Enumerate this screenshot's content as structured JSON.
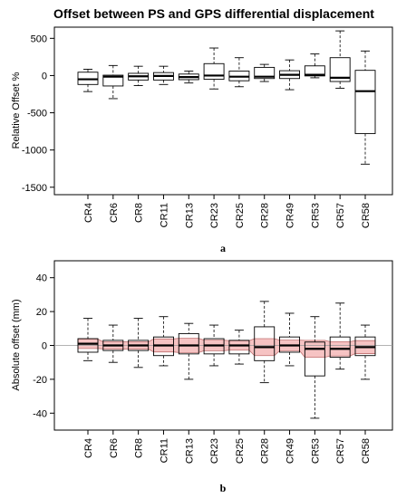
{
  "chart_data": [
    {
      "type": "box",
      "title": "Offset between PS and GPS differential displacement",
      "ylabel": "Relative Offset %",
      "panel_label": "a",
      "ylim": [
        -1600,
        650
      ],
      "yticks": [
        500,
        0,
        -500,
        -1000,
        -1500
      ],
      "ytick_labels": [
        "500",
        "0",
        "-500",
        "-1000",
        "-1500"
      ],
      "categories": [
        "CR4",
        "CR6",
        "CR8",
        "CR11",
        "CR13",
        "CR23",
        "CR25",
        "CR28",
        "CR49",
        "CR53",
        "CR57",
        "CR58"
      ],
      "boxes": [
        {
          "whisker_low": -215,
          "q1": -120,
          "median": -50,
          "q3": 45,
          "whisker_high": 85
        },
        {
          "whisker_low": -310,
          "q1": -140,
          "median": -15,
          "q3": 5,
          "whisker_high": 135
        },
        {
          "whisker_low": -135,
          "q1": -60,
          "median": -10,
          "q3": 30,
          "whisker_high": 125
        },
        {
          "whisker_low": -120,
          "q1": -60,
          "median": -5,
          "q3": 40,
          "whisker_high": 125
        },
        {
          "whisker_low": -100,
          "q1": -55,
          "median": -20,
          "q3": 20,
          "whisker_high": 60
        },
        {
          "whisker_low": -180,
          "q1": -50,
          "median": 0,
          "q3": 160,
          "whisker_high": 370
        },
        {
          "whisker_low": -150,
          "q1": -70,
          "median": -15,
          "q3": 60,
          "whisker_high": 240
        },
        {
          "whisker_low": -80,
          "q1": -40,
          "median": -15,
          "q3": 110,
          "whisker_high": 150
        },
        {
          "whisker_low": -190,
          "q1": -40,
          "median": 10,
          "q3": 65,
          "whisker_high": 210
        },
        {
          "whisker_low": -30,
          "q1": -5,
          "median": 10,
          "q3": 130,
          "whisker_high": 290
        },
        {
          "whisker_low": -170,
          "q1": -80,
          "median": -30,
          "q3": 240,
          "whisker_high": 600
        },
        {
          "whisker_low": -1190,
          "q1": -780,
          "median": -210,
          "q3": 70,
          "whisker_high": 330
        }
      ]
    },
    {
      "type": "box",
      "title": "",
      "ylabel": "Absolute offset (mm)",
      "panel_label": "b",
      "ylim": [
        -50,
        50
      ],
      "yticks": [
        40,
        20,
        0,
        -20,
        -40
      ],
      "ytick_labels": [
        "40",
        "20",
        "0",
        "-20",
        "-40"
      ],
      "reference_line": 0,
      "band_color": "#f4b9b9",
      "categories": [
        "CR4",
        "CR6",
        "CR8",
        "CR11",
        "CR13",
        "CR23",
        "CR25",
        "CR28",
        "CR49",
        "CR53",
        "CR57",
        "CR58"
      ],
      "boxes": [
        {
          "whisker_low": -9,
          "q1": -4,
          "median": 1,
          "q3": 4,
          "whisker_high": 16
        },
        {
          "whisker_low": -10,
          "q1": -3,
          "median": 0,
          "q3": 3,
          "whisker_high": 12
        },
        {
          "whisker_low": -13,
          "q1": -3,
          "median": 0,
          "q3": 3,
          "whisker_high": 16
        },
        {
          "whisker_low": -12,
          "q1": -6,
          "median": 0,
          "q3": 5,
          "whisker_high": 17
        },
        {
          "whisker_low": -20,
          "q1": -5,
          "median": 0,
          "q3": 7,
          "whisker_high": 13
        },
        {
          "whisker_low": -12,
          "q1": -5,
          "median": 0,
          "q3": 4,
          "whisker_high": 12
        },
        {
          "whisker_low": -11,
          "q1": -5,
          "median": 0,
          "q3": 3,
          "whisker_high": 9
        },
        {
          "whisker_low": -22,
          "q1": -9,
          "median": -1,
          "q3": 11,
          "whisker_high": 26
        },
        {
          "whisker_low": -12,
          "q1": -4,
          "median": 0,
          "q3": 5,
          "whisker_high": 19
        },
        {
          "whisker_low": -43,
          "q1": -18,
          "median": -2,
          "q3": 2,
          "whisker_high": 17
        },
        {
          "whisker_low": -14,
          "q1": -7,
          "median": -2,
          "q3": 5,
          "whisker_high": 25
        },
        {
          "whisker_low": -20,
          "q1": -6,
          "median": -1,
          "q3": 5,
          "whisker_high": 12
        }
      ]
    }
  ]
}
